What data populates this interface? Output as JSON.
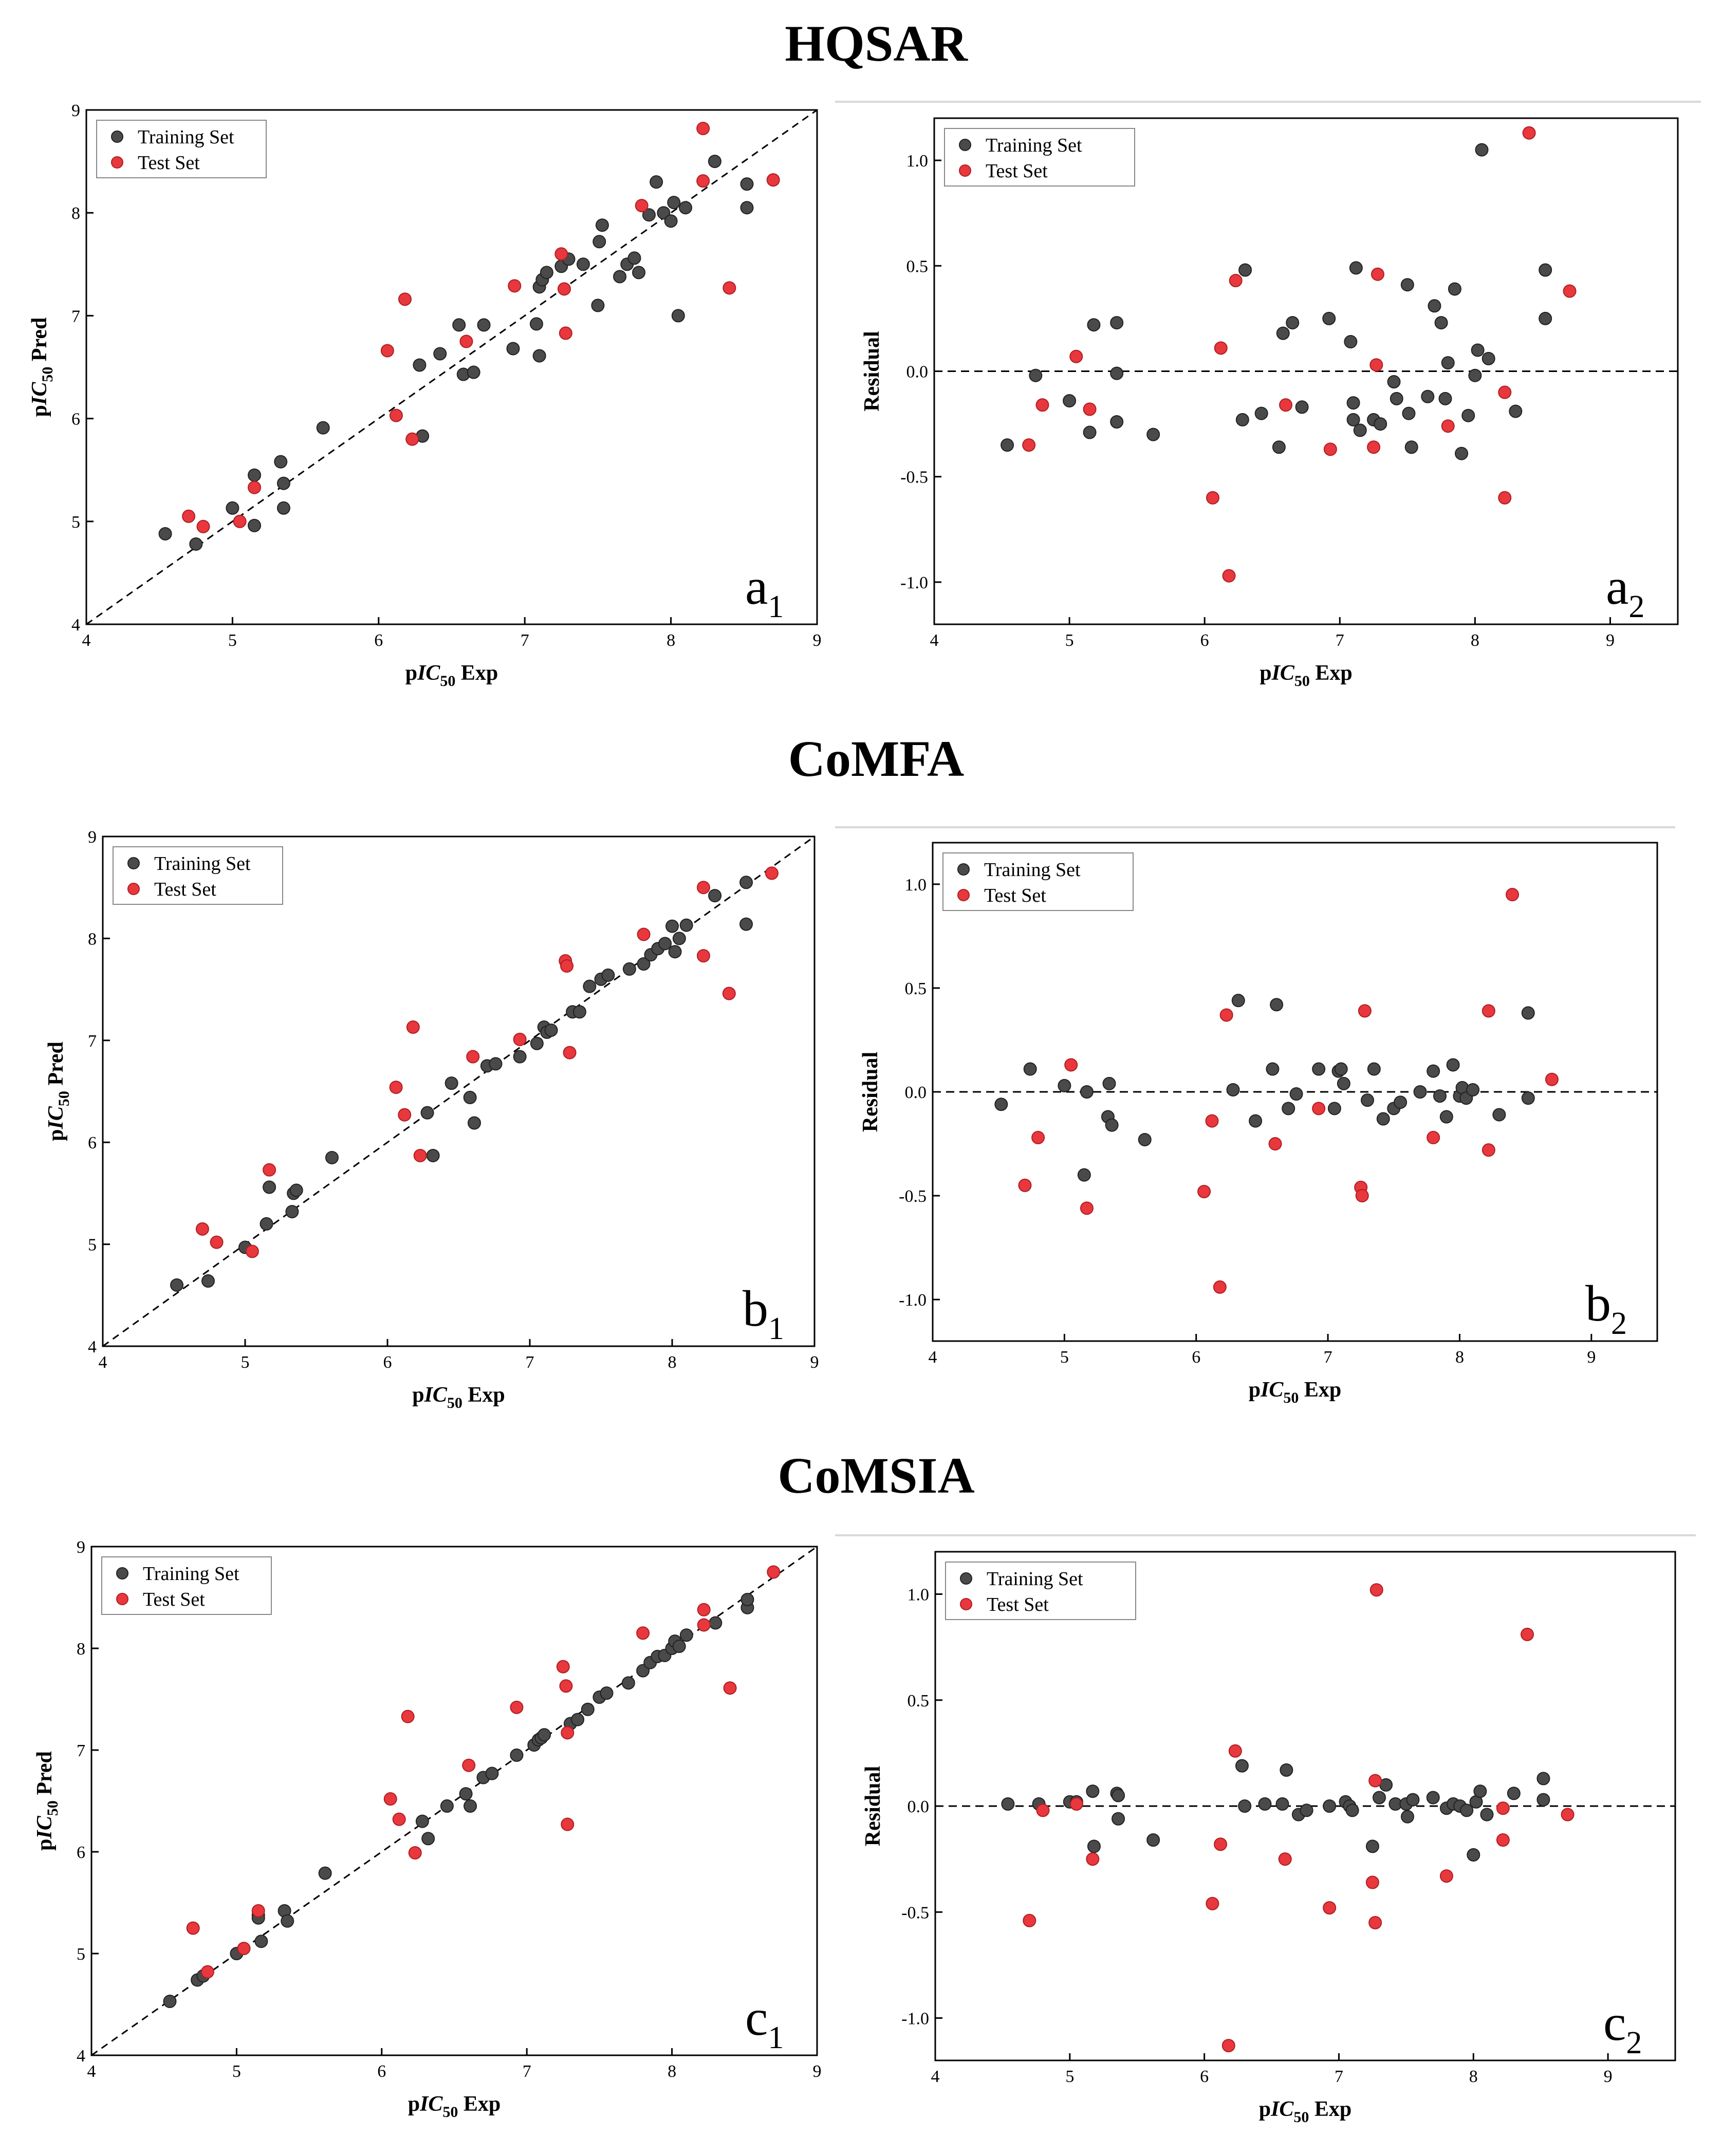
{
  "sections": [
    {
      "title": "HQSAR"
    },
    {
      "title": "CoMFA"
    },
    {
      "title": "CoMSIA"
    }
  ],
  "colors": {
    "training": "#4a4a4a",
    "test": "#e8383d"
  },
  "chart_data": [
    {
      "type": "scatter",
      "kind": "pred",
      "panel": "a",
      "panel_sub": "1",
      "xlabel_prefix": "p",
      "xlabel_italic": "IC",
      "xlabel_sub": "50",
      "xlabel_suffix": " Exp",
      "ylabel_prefix": "p",
      "ylabel_italic": "IC",
      "ylabel_sub": "50",
      "ylabel_suffix": " Pred",
      "xlim": [
        4,
        9
      ],
      "ylim": [
        4,
        9
      ],
      "xticks": [
        "4",
        "5",
        "6",
        "7",
        "8",
        "9"
      ],
      "yticks": [
        "4",
        "5",
        "6",
        "7",
        "8",
        "9"
      ],
      "legend": [
        "Training Set",
        "Test Set"
      ],
      "series": [
        {
          "name": "Training Set",
          "x": [
            4.54,
            4.75,
            5.0,
            5.15,
            5.15,
            5.33,
            5.35,
            5.35,
            5.62,
            6.28,
            6.3,
            6.42,
            6.55,
            6.58,
            6.65,
            6.72,
            6.92,
            7.08,
            7.1,
            7.1,
            7.12,
            7.15,
            7.25,
            7.3,
            7.4,
            7.5,
            7.51,
            7.53,
            7.65,
            7.7,
            7.75,
            7.78,
            7.85,
            7.9,
            7.95,
            8.0,
            8.02,
            8.05,
            8.1,
            8.3,
            8.52,
            8.52
          ],
          "y": [
            4.88,
            4.78,
            5.13,
            5.45,
            4.96,
            5.58,
            5.37,
            5.13,
            5.91,
            6.52,
            5.83,
            6.63,
            6.91,
            6.43,
            6.45,
            6.91,
            6.68,
            6.92,
            6.61,
            7.28,
            7.35,
            7.42,
            7.48,
            7.55,
            7.5,
            7.1,
            7.72,
            7.88,
            7.38,
            7.5,
            7.56,
            7.42,
            7.98,
            8.3,
            8.0,
            7.92,
            8.1,
            7.0,
            8.05,
            8.5,
            8.05,
            8.28
          ]
        },
        {
          "name": "Test Set",
          "x": [
            4.7,
            4.8,
            5.05,
            5.15,
            6.06,
            6.12,
            6.18,
            6.23,
            6.6,
            6.93,
            7.25,
            7.27,
            7.28,
            7.8,
            8.22,
            8.22,
            8.4,
            8.7
          ],
          "y": [
            5.05,
            4.95,
            5.0,
            5.33,
            6.66,
            6.03,
            7.16,
            5.8,
            6.75,
            7.29,
            7.6,
            7.26,
            6.83,
            8.07,
            8.82,
            8.31,
            7.27,
            8.32
          ]
        }
      ]
    },
    {
      "type": "scatter",
      "kind": "residual",
      "panel": "a",
      "panel_sub": "2",
      "xlabel_prefix": "p",
      "xlabel_italic": "IC",
      "xlabel_sub": "50",
      "xlabel_suffix": " Exp",
      "ylabel": "Residual",
      "xlim": [
        4,
        9.5
      ],
      "ylim": [
        -1.2,
        1.2
      ],
      "xticks": [
        "4",
        "5",
        "6",
        "7",
        "8",
        "9"
      ],
      "yticks": [
        "-1.0",
        "-0.5",
        "0.0",
        "0.5",
        "1.0"
      ],
      "legend": [
        "Training Set",
        "Test Set"
      ],
      "series": [
        {
          "name": "Training Set",
          "x": [
            4.54,
            4.75,
            5.0,
            5.15,
            5.18,
            5.35,
            5.35,
            5.35,
            5.62,
            6.28,
            6.3,
            6.42,
            6.55,
            6.58,
            6.65,
            6.72,
            6.92,
            7.08,
            7.1,
            7.1,
            7.12,
            7.15,
            7.25,
            7.3,
            7.4,
            7.42,
            7.5,
            7.51,
            7.53,
            7.65,
            7.7,
            7.75,
            7.78,
            7.8,
            7.85,
            7.9,
            7.95,
            8.0,
            8.02,
            8.05,
            8.1,
            8.3,
            8.52,
            8.52
          ],
          "y": [
            -0.35,
            -0.02,
            -0.14,
            -0.29,
            0.22,
            -0.24,
            0.23,
            -0.01,
            -0.3,
            -0.23,
            0.48,
            -0.2,
            -0.36,
            0.18,
            0.23,
            -0.17,
            0.25,
            0.14,
            -0.15,
            -0.23,
            0.49,
            -0.28,
            -0.23,
            -0.25,
            -0.05,
            -0.13,
            0.41,
            -0.2,
            -0.36,
            -0.12,
            0.31,
            0.23,
            -0.13,
            0.04,
            0.39,
            -0.39,
            -0.21,
            -0.02,
            0.1,
            1.05,
            0.06,
            -0.19,
            0.25,
            0.48
          ]
        },
        {
          "name": "Test Set",
          "x": [
            4.7,
            4.8,
            5.05,
            5.15,
            6.06,
            6.12,
            6.18,
            6.23,
            6.6,
            6.93,
            7.25,
            7.27,
            7.28,
            7.8,
            8.22,
            8.22,
            8.4,
            8.7
          ],
          "y": [
            -0.35,
            -0.16,
            0.07,
            -0.18,
            -0.6,
            0.11,
            -0.97,
            0.43,
            -0.16,
            -0.37,
            -0.36,
            0.03,
            0.46,
            -0.26,
            -0.6,
            -0.1,
            1.13,
            0.38
          ]
        }
      ]
    },
    {
      "type": "scatter",
      "kind": "pred",
      "panel": "b",
      "panel_sub": "1",
      "xlabel_prefix": "p",
      "xlabel_italic": "IC",
      "xlabel_sub": "50",
      "xlabel_suffix": " Exp",
      "ylabel_prefix": "p",
      "ylabel_italic": "IC",
      "ylabel_sub": "50",
      "ylabel_suffix": " Pred",
      "xlim": [
        4,
        9
      ],
      "ylim": [
        4,
        9
      ],
      "xticks": [
        "4",
        "5",
        "6",
        "7",
        "8",
        "9"
      ],
      "yticks": [
        "4",
        "5",
        "6",
        "7",
        "8",
        "9"
      ],
      "legend": [
        "Training Set",
        "Test Set"
      ],
      "series": [
        {
          "name": "Training Set",
          "x": [
            4.52,
            4.74,
            5.0,
            5.15,
            5.17,
            5.33,
            5.34,
            5.36,
            5.61,
            6.28,
            6.32,
            6.45,
            6.58,
            6.61,
            6.7,
            6.76,
            6.93,
            7.05,
            7.1,
            7.12,
            7.15,
            7.3,
            7.35,
            7.42,
            7.5,
            7.55,
            7.7,
            7.8,
            7.85,
            7.9,
            7.95,
            8.0,
            8.02,
            8.05,
            8.1,
            8.3,
            8.52,
            8.52
          ],
          "y": [
            4.6,
            4.64,
            4.97,
            5.2,
            5.56,
            5.32,
            5.5,
            5.53,
            5.85,
            6.29,
            5.87,
            6.58,
            6.44,
            6.19,
            6.75,
            6.77,
            6.84,
            6.97,
            7.13,
            7.08,
            7.1,
            7.28,
            7.28,
            7.53,
            7.6,
            7.64,
            7.7,
            7.75,
            7.84,
            7.9,
            7.95,
            8.12,
            7.87,
            8.0,
            8.13,
            8.42,
            8.14,
            8.55
          ]
        },
        {
          "name": "Test Set",
          "x": [
            4.7,
            4.8,
            5.05,
            5.17,
            6.06,
            6.12,
            6.18,
            6.23,
            6.6,
            6.93,
            7.25,
            7.26,
            7.28,
            7.8,
            8.22,
            8.22,
            8.4,
            8.7
          ],
          "y": [
            5.15,
            5.02,
            4.93,
            5.73,
            6.54,
            6.27,
            7.13,
            5.87,
            6.84,
            7.01,
            7.78,
            7.73,
            6.88,
            8.04,
            8.5,
            7.83,
            7.46,
            8.64
          ]
        }
      ]
    },
    {
      "type": "scatter",
      "kind": "residual",
      "panel": "b",
      "panel_sub": "2",
      "xlabel_prefix": "p",
      "xlabel_italic": "IC",
      "xlabel_sub": "50",
      "xlabel_suffix": " Exp",
      "ylabel": "Residual",
      "xlim": [
        4,
        9.5
      ],
      "ylim": [
        -1.2,
        1.2
      ],
      "xticks": [
        "4",
        "5",
        "6",
        "7",
        "8",
        "9"
      ],
      "yticks": [
        "-1.0",
        "-0.5",
        "0.0",
        "0.5",
        "1.0"
      ],
      "legend": [
        "Training Set",
        "Test Set"
      ],
      "series": [
        {
          "name": "Training Set",
          "x": [
            4.52,
            4.74,
            5.0,
            5.15,
            5.17,
            5.33,
            5.34,
            5.36,
            5.61,
            6.28,
            6.32,
            6.45,
            6.58,
            6.61,
            6.7,
            6.76,
            6.93,
            7.05,
            7.08,
            7.1,
            7.12,
            7.3,
            7.35,
            7.42,
            7.5,
            7.55,
            7.7,
            7.8,
            7.85,
            7.9,
            7.95,
            8.0,
            8.02,
            8.05,
            8.1,
            8.3,
            8.52,
            8.52
          ],
          "y": [
            -0.06,
            0.11,
            0.03,
            -0.4,
            0.0,
            -0.12,
            0.04,
            -0.16,
            -0.23,
            0.01,
            0.44,
            -0.14,
            0.11,
            0.42,
            -0.08,
            -0.01,
            0.11,
            -0.08,
            0.1,
            0.11,
            0.04,
            -0.04,
            0.11,
            -0.13,
            -0.08,
            -0.05,
            0.0,
            0.1,
            -0.02,
            -0.12,
            0.13,
            -0.02,
            0.02,
            -0.03,
            0.01,
            -0.11,
            -0.03,
            0.38
          ]
        },
        {
          "name": "Test Set",
          "x": [
            4.7,
            4.8,
            5.05,
            5.17,
            6.06,
            6.12,
            6.18,
            6.23,
            6.6,
            6.93,
            7.25,
            7.26,
            7.28,
            7.8,
            8.22,
            8.22,
            8.4,
            8.7
          ],
          "y": [
            -0.45,
            -0.22,
            0.13,
            -0.56,
            -0.48,
            -0.14,
            -0.94,
            0.37,
            -0.25,
            -0.08,
            -0.46,
            -0.5,
            0.39,
            -0.22,
            -0.28,
            0.39,
            0.95,
            0.06
          ]
        }
      ]
    },
    {
      "type": "scatter",
      "kind": "pred",
      "panel": "c",
      "panel_sub": "1",
      "xlabel_prefix": "p",
      "xlabel_italic": "IC",
      "xlabel_sub": "50",
      "xlabel_suffix": " Exp",
      "ylabel_prefix": "p",
      "ylabel_italic": "IC",
      "ylabel_sub": "50",
      "ylabel_suffix": " Pred",
      "xlim": [
        4,
        9
      ],
      "ylim": [
        4,
        9
      ],
      "xticks": [
        "4",
        "5",
        "6",
        "7",
        "8",
        "9"
      ],
      "yticks": [
        "4",
        "5",
        "6",
        "7",
        "8",
        "9"
      ],
      "legend": [
        "Training Set",
        "Test Set"
      ],
      "series": [
        {
          "name": "Training Set",
          "x": [
            4.54,
            4.73,
            4.77,
            5.0,
            5.15,
            5.15,
            5.17,
            5.33,
            5.35,
            5.61,
            6.28,
            6.32,
            6.45,
            6.58,
            6.61,
            6.7,
            6.76,
            6.93,
            7.05,
            7.08,
            7.1,
            7.12,
            7.3,
            7.35,
            7.42,
            7.5,
            7.55,
            7.7,
            7.8,
            7.85,
            7.9,
            7.95,
            8.0,
            8.02,
            8.05,
            8.1,
            8.3,
            8.52,
            8.52
          ],
          "y": [
            4.53,
            4.74,
            4.78,
            5.0,
            5.38,
            5.35,
            5.12,
            5.42,
            5.32,
            5.79,
            6.3,
            6.13,
            6.45,
            6.57,
            6.45,
            6.73,
            6.77,
            6.95,
            7.05,
            7.1,
            7.12,
            7.15,
            7.26,
            7.3,
            7.4,
            7.52,
            7.56,
            7.66,
            7.78,
            7.86,
            7.92,
            7.93,
            8.0,
            8.07,
            8.02,
            8.13,
            8.25,
            8.4,
            8.48
          ]
        },
        {
          "name": "Test Set",
          "x": [
            4.7,
            4.8,
            5.05,
            5.15,
            6.06,
            6.12,
            6.18,
            6.23,
            6.6,
            6.93,
            7.25,
            7.27,
            7.28,
            7.28,
            7.8,
            8.22,
            8.22,
            8.4,
            8.7
          ],
          "y": [
            5.25,
            4.82,
            5.05,
            5.42,
            6.52,
            6.32,
            7.33,
            5.99,
            6.85,
            7.42,
            7.82,
            7.63,
            6.27,
            7.17,
            8.15,
            8.38,
            8.23,
            7.61,
            8.75
          ]
        }
      ]
    },
    {
      "type": "scatter",
      "kind": "residual",
      "panel": "c",
      "panel_sub": "2",
      "xlabel_prefix": "p",
      "xlabel_italic": "IC",
      "xlabel_sub": "50",
      "xlabel_suffix": " Exp",
      "ylabel": "Residual",
      "xlim": [
        4,
        9.5
      ],
      "ylim": [
        -1.2,
        1.2
      ],
      "xticks": [
        "4",
        "5",
        "6",
        "7",
        "8",
        "9"
      ],
      "yticks": [
        "-1.0",
        "-0.5",
        "0.0",
        "0.5",
        "1.0"
      ],
      "legend": [
        "Training Set",
        "Test Set"
      ],
      "series": [
        {
          "name": "Training Set",
          "x": [
            4.54,
            4.77,
            5.0,
            5.05,
            5.17,
            5.18,
            5.35,
            5.36,
            5.36,
            5.62,
            6.28,
            6.3,
            6.45,
            6.58,
            6.61,
            6.7,
            6.76,
            6.93,
            7.05,
            7.08,
            7.1,
            7.25,
            7.3,
            7.35,
            7.42,
            7.5,
            7.51,
            7.55,
            7.7,
            7.8,
            7.85,
            7.9,
            7.95,
            8.0,
            8.02,
            8.05,
            8.1,
            8.3,
            8.52,
            8.52
          ],
          "y": [
            0.01,
            0.01,
            0.02,
            0.02,
            0.07,
            -0.19,
            0.06,
            -0.06,
            0.05,
            -0.16,
            0.19,
            0.0,
            0.01,
            0.01,
            0.17,
            -0.04,
            -0.02,
            0.0,
            0.02,
            0.0,
            -0.02,
            -0.19,
            0.04,
            0.1,
            0.01,
            0.01,
            -0.05,
            0.03,
            0.04,
            -0.01,
            0.01,
            0.0,
            -0.02,
            -0.23,
            0.02,
            0.07,
            -0.04,
            0.06,
            0.03,
            0.13
          ]
        },
        {
          "name": "Test Set",
          "x": [
            4.7,
            4.8,
            5.05,
            5.17,
            6.06,
            6.12,
            6.18,
            6.23,
            6.6,
            6.93,
            7.25,
            7.27,
            7.27,
            7.28,
            7.8,
            8.22,
            8.22,
            8.4,
            8.7
          ],
          "y": [
            -0.54,
            -0.02,
            0.01,
            -0.25,
            -0.46,
            -0.18,
            -1.13,
            0.26,
            -0.25,
            -0.48,
            -0.36,
            -0.55,
            0.12,
            1.02,
            -0.33,
            -0.16,
            -0.01,
            0.81,
            -0.04
          ]
        }
      ]
    }
  ]
}
